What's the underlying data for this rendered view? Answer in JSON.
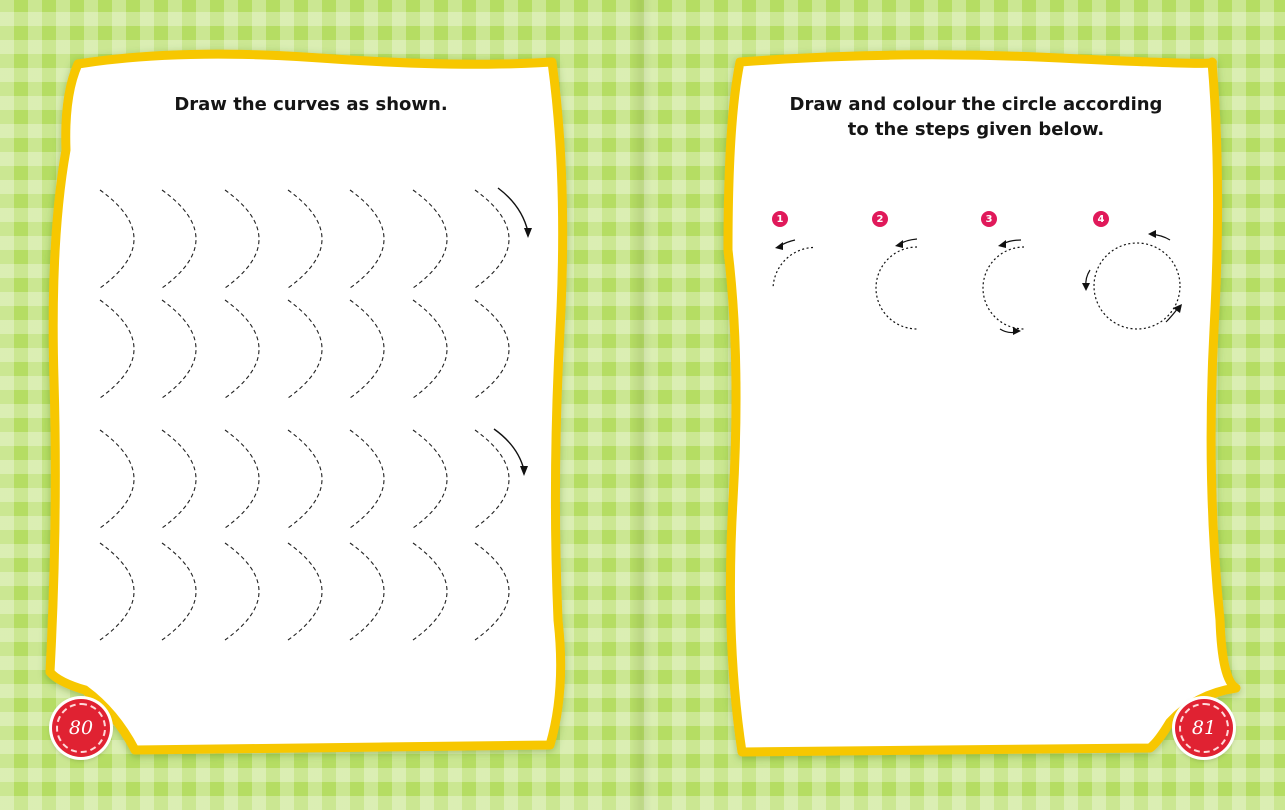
{
  "left_page": {
    "instruction": "Draw the curves as shown.",
    "page_number": "80"
  },
  "right_page": {
    "instruction_line1": "Draw and colour the circle according",
    "instruction_line2": "to the steps given below.",
    "page_number": "81",
    "steps": [
      "1",
      "2",
      "3",
      "4"
    ]
  },
  "colors": {
    "background": "#b5dd63",
    "frame_border": "#f7c700",
    "page_badge": "#e02232",
    "step_badge": "#e0195a"
  }
}
